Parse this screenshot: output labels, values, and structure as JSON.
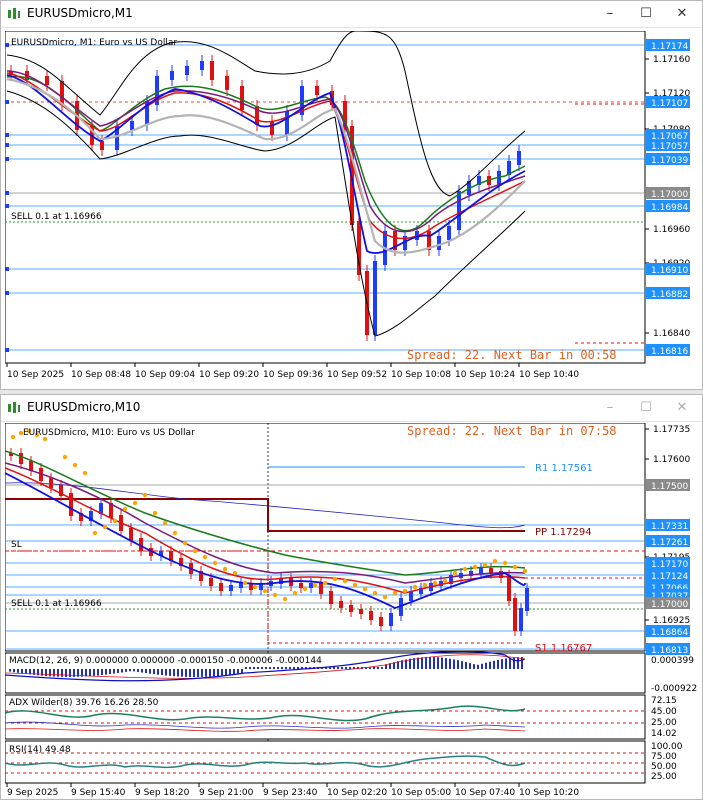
{
  "window1": {
    "title": "EURUSDmicro,M1",
    "header": "EURUSDmicro, M1:  Euro vs US Dollar",
    "spread": "Spread: 22. Next Bar in 00:58",
    "sell_label": "SELL 0.1 at 1.16966",
    "price_ticks": [
      "1.17160",
      "1.17120",
      "1.17080",
      "1.16960",
      "1.16920",
      "1.16840"
    ],
    "price_tags": [
      {
        "text": "1.17174",
        "color": "#1e90ff"
      },
      {
        "text": "1.17107",
        "color": "#1e90ff"
      },
      {
        "text": "1.17067",
        "color": "#1e90ff"
      },
      {
        "text": "1.17057",
        "color": "#1e90ff"
      },
      {
        "text": "1.17039",
        "color": "#1e90ff"
      },
      {
        "text": "1.17000",
        "color": "#8a8a8a"
      },
      {
        "text": "1.16984",
        "color": "#1e90ff"
      },
      {
        "text": "1.16910",
        "color": "#1e90ff"
      },
      {
        "text": "1.16882",
        "color": "#1e90ff"
      },
      {
        "text": "1.16816",
        "color": "#1e90ff"
      }
    ],
    "time_axis": [
      "10 Sep 2025",
      "10 Sep 08:48",
      "10 Sep 09:04",
      "10 Sep 09:20",
      "10 Sep 09:36",
      "10 Sep 09:52",
      "10 Sep 10:08",
      "10 Sep 10:24",
      "10 Sep 10:40"
    ]
  },
  "window2": {
    "title": "EURUSDmicro,M10",
    "header": "EURUSDmicro, M10:  Euro vs US Dollar",
    "spread": "Spread: 22. Next Bar in 07:58",
    "sell_label": "SELL 0.1 at 1.16966",
    "sl_label": "SL",
    "r1_label": "R1 1.17561",
    "pp_label": "PP 1.17294",
    "s1_label": "S1 1.16767",
    "price_ticks": [
      "1.17735",
      "1.17600",
      "1.17195",
      "1.16925"
    ],
    "price_tags": [
      {
        "text": "1.17500",
        "color": "#8a8a8a"
      },
      {
        "text": "1.17331",
        "color": "#1e90ff"
      },
      {
        "text": "1.17261",
        "color": "#1e90ff"
      },
      {
        "text": "1.17170",
        "color": "#1e90ff"
      },
      {
        "text": "1.17124",
        "color": "#1e90ff"
      },
      {
        "text": "1.17066",
        "color": "#1e90ff"
      },
      {
        "text": "1.17037",
        "color": "#1e90ff"
      },
      {
        "text": "1.17000",
        "color": "#8a8a8a"
      },
      {
        "text": "1.16864",
        "color": "#1e90ff"
      },
      {
        "text": "1.16813",
        "color": "#1e90ff"
      }
    ],
    "macd_label": "MACD(12, 26, 9)  0.000000  0.000000  -0.000150  -0.000006  -0.000144",
    "macd_ticks": [
      "0.000399",
      "-0.000922"
    ],
    "adx_label": "ADX Wilder(8)  39.76  16.26  28.50",
    "adx_ticks": [
      "72.15",
      "45.00",
      "25.00",
      "14.02"
    ],
    "rsi_label": "RSI(14)  49.48",
    "rsi_ticks": [
      "100.00",
      "75.00",
      "50.00",
      "25.00"
    ],
    "time_axis": [
      "9 Sep 2025",
      "9 Sep 15:40",
      "9 Sep 18:20",
      "9 Sep 21:00",
      "9 Sep 23:40",
      "10 Sep 02:20",
      "10 Sep 05:00",
      "10 Sep 07:40",
      "10 Sep 10:20"
    ]
  },
  "controls": {
    "minimize": "–",
    "maximize": "☐",
    "close": "✕"
  },
  "colors": {
    "bull": "#1e3cff",
    "bear": "#e01010",
    "tag_blue": "#1e90ff",
    "spread_text": "#e06020",
    "ma_green": "#1a7a1a",
    "ma_purple": "#7a1a7a",
    "ma_red": "#e01010",
    "ma_blue": "#1010e0",
    "sar": "#ffa500"
  }
}
